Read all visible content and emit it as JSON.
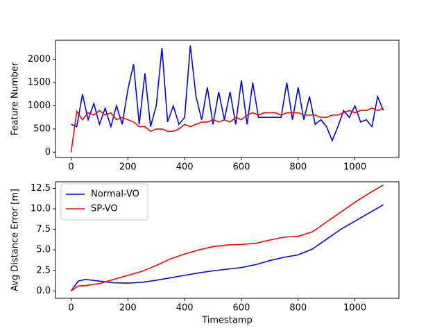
{
  "chart_data": [
    {
      "type": "line",
      "ylabel": "Feature Number",
      "x": [
        0,
        20,
        40,
        60,
        80,
        100,
        120,
        140,
        160,
        180,
        200,
        220,
        240,
        260,
        280,
        300,
        320,
        340,
        360,
        380,
        400,
        420,
        440,
        460,
        480,
        500,
        520,
        540,
        560,
        580,
        600,
        620,
        640,
        660,
        680,
        700,
        720,
        740,
        760,
        780,
        800,
        820,
        840,
        860,
        880,
        900,
        920,
        940,
        960,
        980,
        1000,
        1020,
        1040,
        1060,
        1080,
        1100
      ],
      "series": [
        {
          "color": "#0000ff",
          "values": [
            600,
            550,
            1250,
            700,
            1050,
            600,
            950,
            550,
            1000,
            600,
            1350,
            1900,
            600,
            1700,
            550,
            1000,
            2250,
            650,
            1000,
            600,
            750,
            2300,
            1200,
            700,
            1400,
            600,
            1300,
            700,
            1300,
            600,
            1550,
            600,
            1500,
            750,
            750,
            750,
            750,
            750,
            1500,
            700,
            1400,
            700,
            1200,
            600,
            700,
            550,
            250,
            550,
            900,
            750,
            1000,
            650,
            700,
            550,
            1200,
            900
          ]
        },
        {
          "color": "#ff0000",
          "values": [
            0,
            880,
            700,
            850,
            800,
            900,
            800,
            850,
            700,
            750,
            700,
            650,
            550,
            550,
            450,
            500,
            500,
            450,
            450,
            500,
            600,
            550,
            600,
            650,
            650,
            700,
            650,
            700,
            650,
            750,
            700,
            800,
            850,
            800,
            850,
            850,
            850,
            800,
            850,
            850,
            850,
            800,
            800,
            800,
            750,
            750,
            800,
            800,
            850,
            900,
            850,
            900,
            900,
            950,
            900,
            950
          ]
        }
      ],
      "xlim": [
        -55,
        1155
      ],
      "xticks": [
        0,
        200,
        400,
        600,
        800,
        1000
      ],
      "ylim": [
        -115,
        2415
      ],
      "yticks": [
        0,
        500,
        1000,
        1500,
        2000
      ]
    },
    {
      "type": "line",
      "xlabel": "Timestamp",
      "ylabel": "Avg Distance Error [m]",
      "x": [
        0,
        25,
        50,
        100,
        150,
        200,
        250,
        300,
        350,
        400,
        450,
        500,
        550,
        600,
        650,
        700,
        750,
        800,
        850,
        900,
        950,
        1000,
        1050,
        1100
      ],
      "series": [
        {
          "name": "Normal-VO",
          "color": "#0000ff",
          "values": [
            0,
            1.2,
            1.4,
            1.2,
            1.0,
            0.95,
            1.05,
            1.3,
            1.6,
            1.9,
            2.2,
            2.45,
            2.65,
            2.85,
            3.2,
            3.7,
            4.1,
            4.4,
            5.1,
            6.3,
            7.5,
            8.5,
            9.5,
            10.5
          ]
        },
        {
          "name": "SP-VO",
          "color": "#ff0000",
          "values": [
            0,
            0.6,
            0.65,
            0.9,
            1.4,
            1.9,
            2.4,
            3.1,
            3.9,
            4.5,
            5.0,
            5.4,
            5.6,
            5.65,
            5.8,
            6.2,
            6.55,
            6.65,
            7.2,
            8.4,
            9.6,
            10.8,
            11.9,
            12.9
          ]
        }
      ],
      "legend": "upper left",
      "xlim": [
        -55,
        1155
      ],
      "xticks": [
        0,
        200,
        400,
        600,
        800,
        1000
      ],
      "ylim": [
        -0.9,
        13.3
      ],
      "yticks": [
        {
          "value": 0,
          "label": "0.0"
        },
        2.5,
        {
          "value": 5,
          "label": "5.0"
        },
        7.5,
        {
          "value": 10,
          "label": "10.0"
        },
        12.5
      ]
    }
  ]
}
